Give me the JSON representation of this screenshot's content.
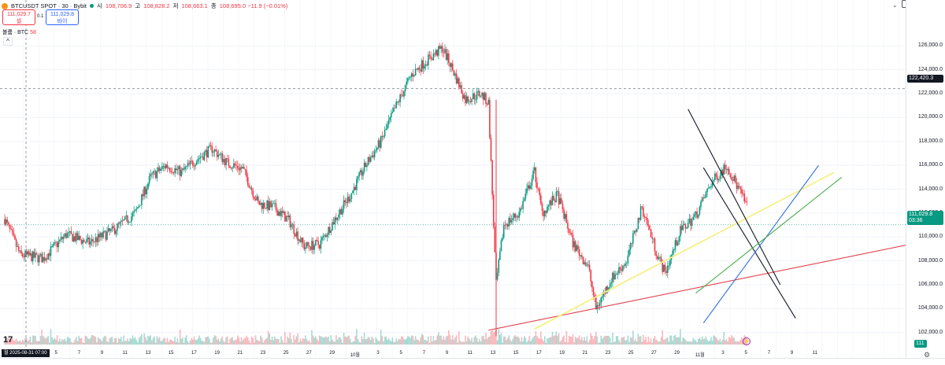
{
  "header": {
    "symbol": "BTCUSDT SPOT · 30 · Bybit",
    "ohlc": [
      {
        "key": "시",
        "value": "108,706.9"
      },
      {
        "key": "고",
        "value": "108,828.2"
      },
      {
        "key": "저",
        "value": "108,663.1"
      },
      {
        "key": "종",
        "value": "108,695.0 −11.9 (−0.01%)"
      }
    ]
  },
  "trade": {
    "sell_price": "111,029.7",
    "sell_label": "셀",
    "spread": "0.1",
    "buy_price": "111,029.8",
    "buy_label": "바이"
  },
  "volume_legend": {
    "label": "볼륨 · BTC",
    "value": "58"
  },
  "price_axis": {
    "ticks": [
      "126,000.0",
      "124,000.0",
      "122,000.0",
      "120,000.0",
      "118,000.0",
      "116,000.0",
      "114,000.0",
      "112,000.0",
      "110,000.0",
      "108,000.0",
      "106,000.0",
      "104,000.0",
      "102,000.0"
    ],
    "crosshair_price": "122,420.3",
    "last_price": "111,029.8",
    "last_countdown": "03:36",
    "volume_tag": "111"
  },
  "time_axis": {
    "labels": [
      "3",
      "5",
      "7",
      "9",
      "11",
      "13",
      "15",
      "17",
      "19",
      "21",
      "23",
      "25",
      "27",
      "29",
      "10월",
      "3",
      "5",
      "7",
      "9",
      "11",
      "13",
      "15",
      "17",
      "19",
      "21",
      "23",
      "25",
      "27",
      "29",
      "11월",
      "3",
      "5",
      "7",
      "9",
      "11"
    ],
    "cursor_date": "월 2025-08-31   07:00"
  },
  "colors": {
    "up": "#089981",
    "down": "#f23645",
    "black_line": "#131722",
    "yellow_line": "#f5f07a",
    "red_line": "#e0424f",
    "blue_line": "#2f6fe0",
    "green_line": "#4caf50"
  },
  "chart_data": {
    "type": "candlestick",
    "title": "BTCUSDT SPOT · 30 · Bybit",
    "ylim": [
      101000,
      127200
    ],
    "x_range": [
      "2025-08-31",
      "2025-11-12"
    ],
    "price_path": [
      [
        0,
        111500
      ],
      [
        2,
        108500
      ],
      [
        5,
        108200
      ],
      [
        8,
        110200
      ],
      [
        11,
        109500
      ],
      [
        14,
        110500
      ],
      [
        17,
        112000
      ],
      [
        19,
        115000
      ],
      [
        21,
        116000
      ],
      [
        23,
        115400
      ],
      [
        25,
        116500
      ],
      [
        27,
        117400
      ],
      [
        29,
        116200
      ],
      [
        31,
        115700
      ],
      [
        33,
        112800
      ],
      [
        35,
        112500
      ],
      [
        37,
        111400
      ],
      [
        39,
        109200
      ],
      [
        41,
        109400
      ],
      [
        43,
        111500
      ],
      [
        45,
        113500
      ],
      [
        47,
        116000
      ],
      [
        49,
        118000
      ],
      [
        51,
        121000
      ],
      [
        53,
        123600
      ],
      [
        55,
        124800
      ],
      [
        57,
        125800
      ],
      [
        58,
        124500
      ],
      [
        60,
        121500
      ],
      [
        62,
        122000
      ],
      [
        63,
        121200
      ],
      [
        64,
        106000
      ],
      [
        65,
        111000
      ],
      [
        67,
        112000
      ],
      [
        69,
        115500
      ],
      [
        70,
        112000
      ],
      [
        72,
        113500
      ],
      [
        74,
        109500
      ],
      [
        76,
        107500
      ],
      [
        77,
        104000
      ],
      [
        79,
        106500
      ],
      [
        81,
        108000
      ],
      [
        83,
        112500
      ],
      [
        85,
        108500
      ],
      [
        86,
        107000
      ],
      [
        88,
        110500
      ],
      [
        90,
        111800
      ],
      [
        92,
        114500
      ],
      [
        94,
        116000
      ],
      [
        96,
        113500
      ],
      [
        98,
        110500
      ],
      [
        100,
        107200
      ],
      [
        102,
        109500
      ],
      [
        104,
        111000
      ]
    ],
    "drawings": [
      {
        "name": "red-trendline",
        "color": "red",
        "from": [
          63,
          102200
        ],
        "to": [
          118,
          109400
        ]
      },
      {
        "name": "yellow-trendline",
        "color": "yellow",
        "from": [
          69,
          102300
        ],
        "to": [
          108,
          115400
        ]
      },
      {
        "name": "black-trendline-1",
        "color": "black",
        "from": [
          89,
          120700
        ],
        "to": [
          101,
          106000
        ]
      },
      {
        "name": "black-trendline-2",
        "color": "black",
        "from": [
          91,
          115800
        ],
        "to": [
          103,
          103200
        ]
      },
      {
        "name": "blue-trendline",
        "color": "blue",
        "from": [
          91,
          102800
        ],
        "to": [
          106,
          116000
        ]
      },
      {
        "name": "green-trendline",
        "color": "green",
        "from": [
          90,
          105300
        ],
        "to": [
          109,
          115000
        ]
      }
    ]
  }
}
